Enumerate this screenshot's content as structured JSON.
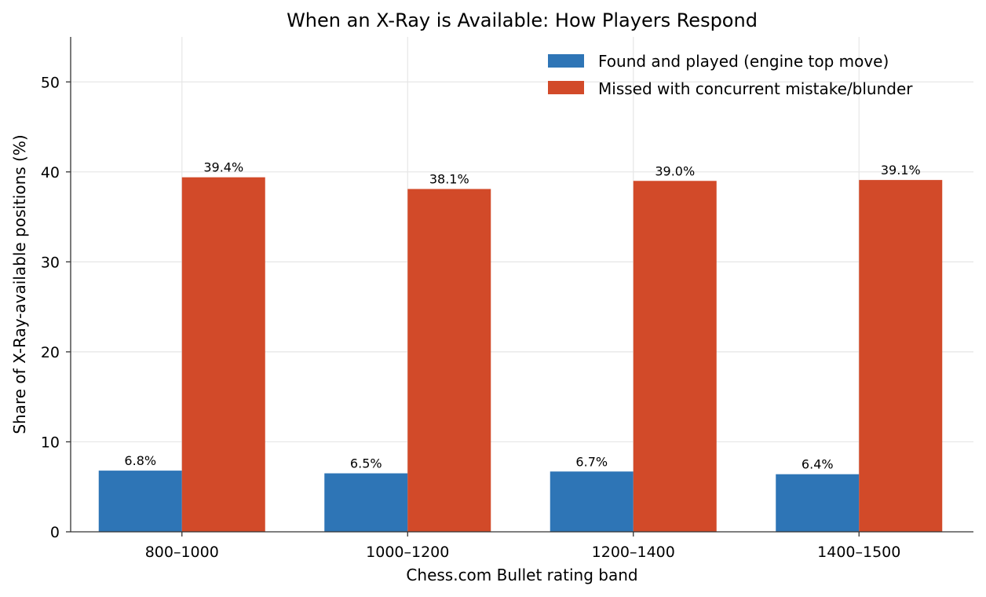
{
  "chart_data": {
    "type": "bar",
    "title": "When an X-Ray is Available: How Players Respond",
    "xlabel": "Chess.com Bullet rating band",
    "ylabel": "Share of X-Ray-available positions (%)",
    "categories": [
      "800–1000",
      "1000–1200",
      "1200–1400",
      "1400–1500"
    ],
    "series": [
      {
        "name": "Found and played (engine top move)",
        "values": [
          6.8,
          6.5,
          6.7,
          6.4
        ],
        "labels": [
          "6.8%",
          "6.5%",
          "6.7%",
          "6.4%"
        ],
        "color": "#2e75b6"
      },
      {
        "name": "Missed with concurrent mistake/blunder",
        "values": [
          39.4,
          38.1,
          39.0,
          39.1
        ],
        "labels": [
          "39.4%",
          "38.1%",
          "39.0%",
          "39.1%"
        ],
        "color": "#d24a29"
      }
    ],
    "ylim": [
      0,
      55
    ],
    "yticks": [
      0,
      10,
      20,
      30,
      40,
      50
    ],
    "ytick_labels": [
      "0",
      "10",
      "20",
      "30",
      "40",
      "50"
    ],
    "grid": true,
    "legend_position": "top-right"
  }
}
